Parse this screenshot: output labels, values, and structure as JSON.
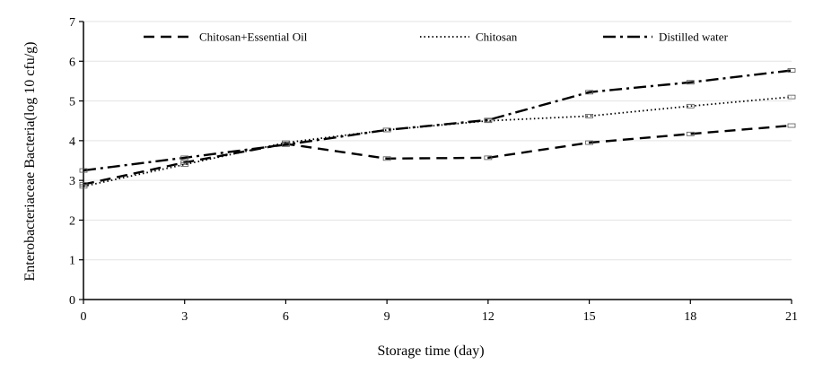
{
  "chart_data": {
    "type": "line",
    "title": "",
    "xlabel": "Storage time (day)",
    "ylabel": "Enterobacteriaceae Bacteria(log 10 cfu/g)",
    "x": [
      0,
      3,
      6,
      9,
      12,
      15,
      18,
      21
    ],
    "xlim": [
      0,
      21
    ],
    "ylim": [
      0,
      7
    ],
    "xticks": [
      "0",
      "3",
      "6",
      "9",
      "12",
      "15",
      "18",
      "21"
    ],
    "yticks": [
      "0",
      "1",
      "2",
      "3",
      "4",
      "5",
      "6",
      "7"
    ],
    "grid": true,
    "legend_position": "top",
    "series": [
      {
        "name": "Chitosan+Essential Oil",
        "style": "dashed",
        "color": "#000000",
        "values": [
          2.9,
          3.45,
          3.92,
          3.55,
          3.57,
          3.95,
          4.17,
          4.38
        ]
      },
      {
        "name": "Chitosan",
        "style": "dotted",
        "color": "#000000",
        "values": [
          2.85,
          3.4,
          3.95,
          4.27,
          4.5,
          4.62,
          4.87,
          5.1
        ]
      },
      {
        "name": "Distilled water",
        "style": "dash-dot",
        "color": "#000000",
        "values": [
          3.25,
          3.57,
          3.9,
          4.27,
          4.52,
          5.22,
          5.47,
          5.77
        ]
      }
    ]
  }
}
